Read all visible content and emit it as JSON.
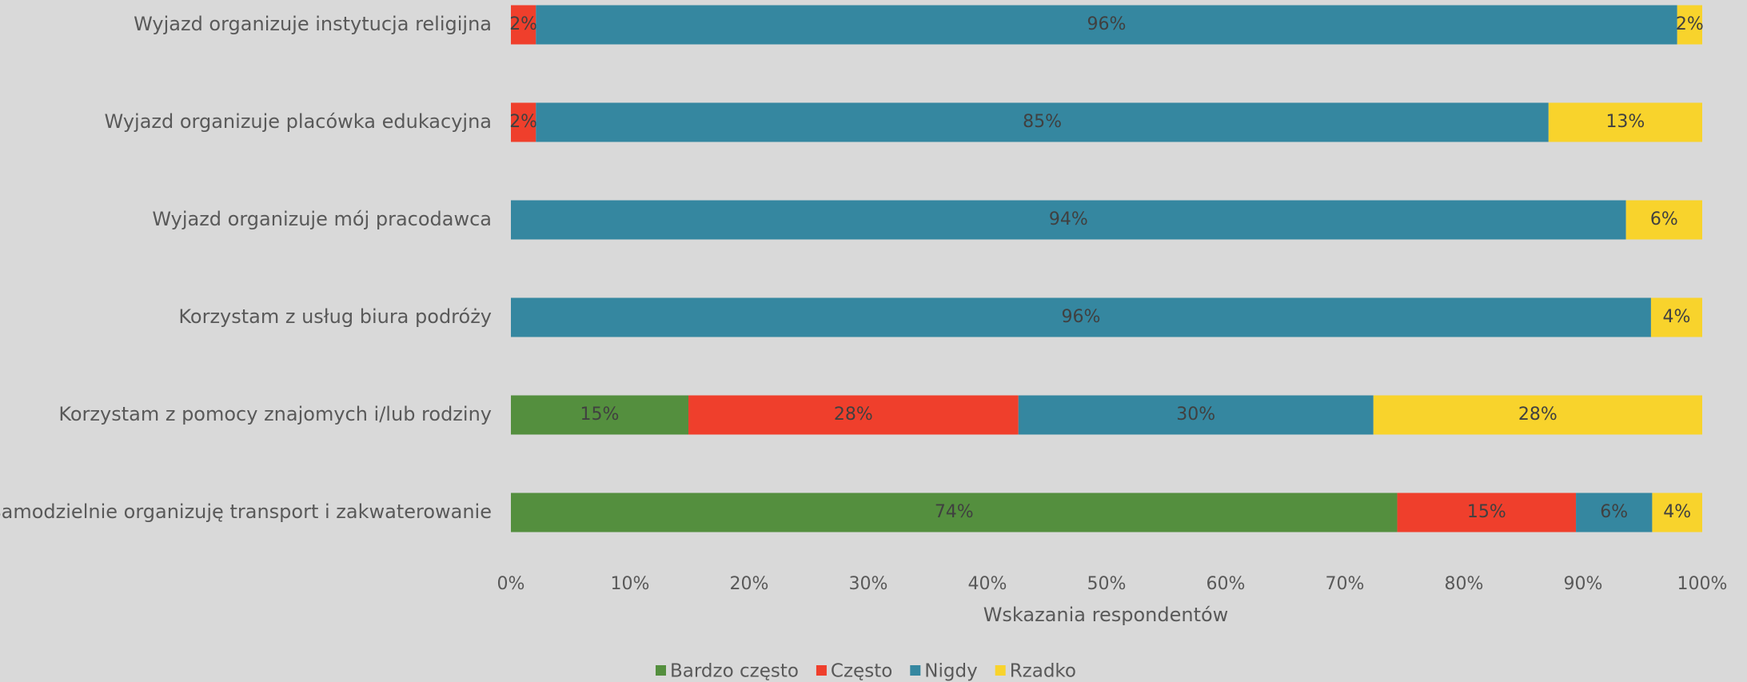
{
  "chart_data": {
    "type": "stacked_bar_horizontal",
    "categories": [
      "Wyjazd organizuje instytucja religijna",
      "Wyjazd organizuje placówka edukacyjna",
      "Wyjazd organizuje mój pracodawca",
      "Korzystam z usług biura podróży",
      "Korzystam z pomocy znajomych i/lub rodziny",
      "Samodzielnie organizuję transport i zakwaterowanie"
    ],
    "series": [
      {
        "name": "Bardzo często",
        "color": "#548f3e",
        "values": [
          0,
          0,
          0,
          0,
          14.9,
          74.4
        ],
        "value_labels": [
          null,
          null,
          null,
          null,
          "15%",
          "74%"
        ]
      },
      {
        "name": "Często",
        "color": "#ef3f2c",
        "values": [
          2.1,
          2.1,
          0,
          0,
          27.7,
          15.0
        ],
        "value_labels": [
          "2%",
          "2%",
          null,
          null,
          "28%",
          "15%"
        ]
      },
      {
        "name": "Nigdy",
        "color": "#3587a0",
        "values": [
          95.8,
          85.0,
          93.6,
          95.7,
          29.8,
          6.4
        ],
        "value_labels": [
          "96%",
          "85%",
          "94%",
          "96%",
          "30%",
          "6%"
        ]
      },
      {
        "name": "Rzadko",
        "color": "#f8d32c",
        "values": [
          2.1,
          12.9,
          6.4,
          4.3,
          27.6,
          4.2
        ],
        "value_labels": [
          "2%",
          "13%",
          "6%",
          "4%",
          "28%",
          "4%"
        ]
      }
    ],
    "xlim": [
      0,
      100
    ],
    "xticks": [
      {
        "value": 0,
        "label": "0%"
      },
      {
        "value": 10,
        "label": "10%"
      },
      {
        "value": 20,
        "label": "20%"
      },
      {
        "value": 30,
        "label": "30%"
      },
      {
        "value": 40,
        "label": "40%"
      },
      {
        "value": 50,
        "label": "50%"
      },
      {
        "value": 60,
        "label": "60%"
      },
      {
        "value": 70,
        "label": "70%"
      },
      {
        "value": 80,
        "label": "80%"
      },
      {
        "value": 90,
        "label": "90%"
      },
      {
        "value": 100,
        "label": "100%"
      }
    ],
    "xlabel": "Wskazania respondentów",
    "legend": "bottom"
  }
}
